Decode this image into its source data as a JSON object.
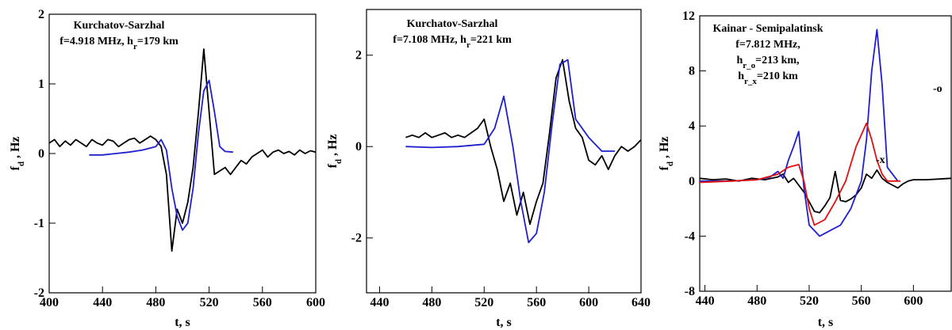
{
  "chart_data": [
    {
      "type": "line",
      "annotation": [
        [
          "Kurchatov-Sarzhal"
        ],
        [
          "f=4.918 MHz, h",
          "r",
          "=179 km"
        ]
      ],
      "xlabel": [
        "t, s"
      ],
      "ylabel": [
        "f",
        "d",
        " , Hz"
      ],
      "xlim": [
        400,
        600
      ],
      "xticks": [
        400,
        440,
        480,
        520,
        560,
        600
      ],
      "ylim": [
        -2,
        2
      ],
      "yticks": [
        -2,
        -1,
        0,
        1,
        2
      ],
      "series": [
        {
          "color": "#000000",
          "x": [
            400,
            404,
            408,
            412,
            416,
            420,
            424,
            428,
            432,
            436,
            440,
            444,
            448,
            452,
            456,
            460,
            464,
            468,
            472,
            476,
            480,
            484,
            488,
            492,
            496,
            500,
            504,
            508,
            512,
            516,
            520,
            524,
            528,
            532,
            536,
            540,
            544,
            548,
            552,
            556,
            560,
            564,
            568,
            572,
            576,
            580,
            584,
            588,
            592,
            596,
            600
          ],
          "values": [
            0.15,
            0.2,
            0.1,
            0.18,
            0.12,
            0.2,
            0.15,
            0.1,
            0.2,
            0.15,
            0.12,
            0.2,
            0.18,
            0.1,
            0.15,
            0.2,
            0.22,
            0.15,
            0.2,
            0.25,
            0.2,
            0.1,
            -0.3,
            -1.4,
            -0.8,
            -1.0,
            -0.7,
            -0.2,
            0.6,
            1.5,
            0.6,
            -0.3,
            -0.25,
            -0.2,
            -0.3,
            -0.2,
            -0.1,
            -0.15,
            -0.05,
            0,
            0.05,
            -0.05,
            0.02,
            0.05,
            0,
            0.03,
            -0.02,
            0.05,
            0,
            0.04,
            0.02
          ]
        },
        {
          "color": "#1f1fd0",
          "x": [
            430,
            440,
            450,
            460,
            470,
            480,
            484,
            488,
            492,
            496,
            500,
            504,
            508,
            512,
            516,
            520,
            524,
            528,
            532,
            538
          ],
          "values": [
            -0.02,
            -0.02,
            0,
            0.02,
            0.05,
            0.1,
            0.2,
            0.05,
            -0.5,
            -0.9,
            -1.1,
            -1.0,
            -0.5,
            0.3,
            0.9,
            1.05,
            0.6,
            0.1,
            0.03,
            0.02
          ]
        }
      ]
    },
    {
      "type": "line",
      "annotation": [
        [
          "Kurchatov-Sarzhal"
        ],
        [
          "f=7.108 MHz, h",
          "r",
          "=221 km"
        ]
      ],
      "xlabel": [
        "t, s"
      ],
      "ylabel": [
        "f",
        "d",
        " , Hz"
      ],
      "xlim": [
        430,
        640
      ],
      "xticks": [
        440,
        480,
        520,
        560,
        600,
        640
      ],
      "ylim": [
        -3.2,
        3
      ],
      "yticks": [
        -2,
        0,
        2
      ],
      "series": [
        {
          "color": "#000000",
          "x": [
            460,
            465,
            470,
            475,
            480,
            485,
            490,
            495,
            500,
            505,
            510,
            515,
            520,
            525,
            530,
            535,
            540,
            545,
            550,
            555,
            560,
            565,
            570,
            575,
            580,
            585,
            590,
            595,
            600,
            605,
            610,
            615,
            620,
            625,
            630,
            635,
            640
          ],
          "values": [
            0.2,
            0.25,
            0.2,
            0.3,
            0.2,
            0.25,
            0.3,
            0.2,
            0.25,
            0.2,
            0.3,
            0.4,
            0.6,
            0.0,
            -0.5,
            -1.2,
            -0.8,
            -1.5,
            -1.0,
            -1.7,
            -1.2,
            -0.8,
            0.3,
            1.5,
            1.9,
            1.0,
            0.4,
            0.2,
            -0.3,
            -0.4,
            -0.2,
            -0.5,
            -0.2,
            0.0,
            -0.1,
            0.0,
            0.15
          ]
        },
        {
          "color": "#1f1fd0",
          "x": [
            460,
            480,
            500,
            520,
            528,
            535,
            542,
            548,
            554,
            560,
            566,
            572,
            578,
            584,
            590,
            600,
            610,
            620
          ],
          "values": [
            0.0,
            -0.02,
            0.0,
            0.05,
            0.4,
            1.1,
            0.0,
            -1.2,
            -2.1,
            -1.9,
            -1.0,
            0.5,
            1.8,
            1.9,
            0.6,
            0.2,
            -0.1,
            -0.1
          ]
        }
      ]
    },
    {
      "type": "line",
      "annotation": [
        [
          "Kainar - Semipalatinsk"
        ],
        [
          "f=7.812 MHz,"
        ],
        [
          "h",
          "r_o",
          "=213 km,"
        ],
        [
          "h",
          "r_x",
          "=210 km"
        ]
      ],
      "xlabel": [
        "t, s"
      ],
      "ylabel": [
        "f",
        "d",
        " , Hz"
      ],
      "xlim": [
        436,
        629
      ],
      "xticks": [
        440,
        480,
        520,
        560,
        600
      ],
      "ylim": [
        -8,
        12
      ],
      "yticks": [
        -8,
        -4,
        0,
        4,
        8,
        12
      ],
      "series": [
        {
          "color": "#000000",
          "x": [
            436,
            446,
            456,
            466,
            476,
            486,
            496,
            500,
            504,
            508,
            512,
            516,
            520,
            524,
            528,
            532,
            536,
            540,
            544,
            548,
            552,
            556,
            560,
            564,
            568,
            572,
            576,
            580,
            584,
            588,
            592,
            596,
            600,
            610,
            620,
            629
          ],
          "values": [
            0.2,
            0.1,
            0.15,
            0.0,
            0.2,
            0.1,
            0.3,
            0.5,
            -0.1,
            0.2,
            -0.3,
            -0.8,
            -1.5,
            -2.2,
            -2.3,
            -1.8,
            -1.2,
            0.7,
            -1.4,
            -1.5,
            -1.3,
            -1.0,
            -0.5,
            0.5,
            0.2,
            0.8,
            0.2,
            -0.1,
            -0.3,
            -0.5,
            -0.2,
            0.0,
            0.1,
            0.1,
            0.15,
            0.2
          ]
        },
        {
          "name": "-o",
          "color": "#1f1fd0",
          "x": [
            436,
            460,
            480,
            490,
            496,
            500,
            504,
            508,
            512,
            516,
            520,
            528,
            536,
            544,
            552,
            560,
            564,
            568,
            572,
            576,
            580,
            588
          ],
          "values": [
            0,
            0,
            0.1,
            0.3,
            0.7,
            0.2,
            1.5,
            2.5,
            3.6,
            -0.5,
            -3.2,
            -4.0,
            -3.6,
            -3.2,
            -2.0,
            0.0,
            3.0,
            8.0,
            11.0,
            7.0,
            1.0,
            0.0
          ]
        },
        {
          "name": "-x",
          "color": "#e01010",
          "x": [
            436,
            460,
            480,
            496,
            504,
            512,
            516,
            520,
            524,
            532,
            540,
            548,
            556,
            564,
            568,
            572,
            576,
            580,
            590
          ],
          "values": [
            -0.1,
            0,
            0.1,
            0.5,
            1.0,
            1.2,
            0.0,
            -2.0,
            -3.2,
            -2.8,
            -1.5,
            0.0,
            2.5,
            4.2,
            3.0,
            1.5,
            0.5,
            0.0,
            0.0
          ]
        }
      ]
    }
  ]
}
